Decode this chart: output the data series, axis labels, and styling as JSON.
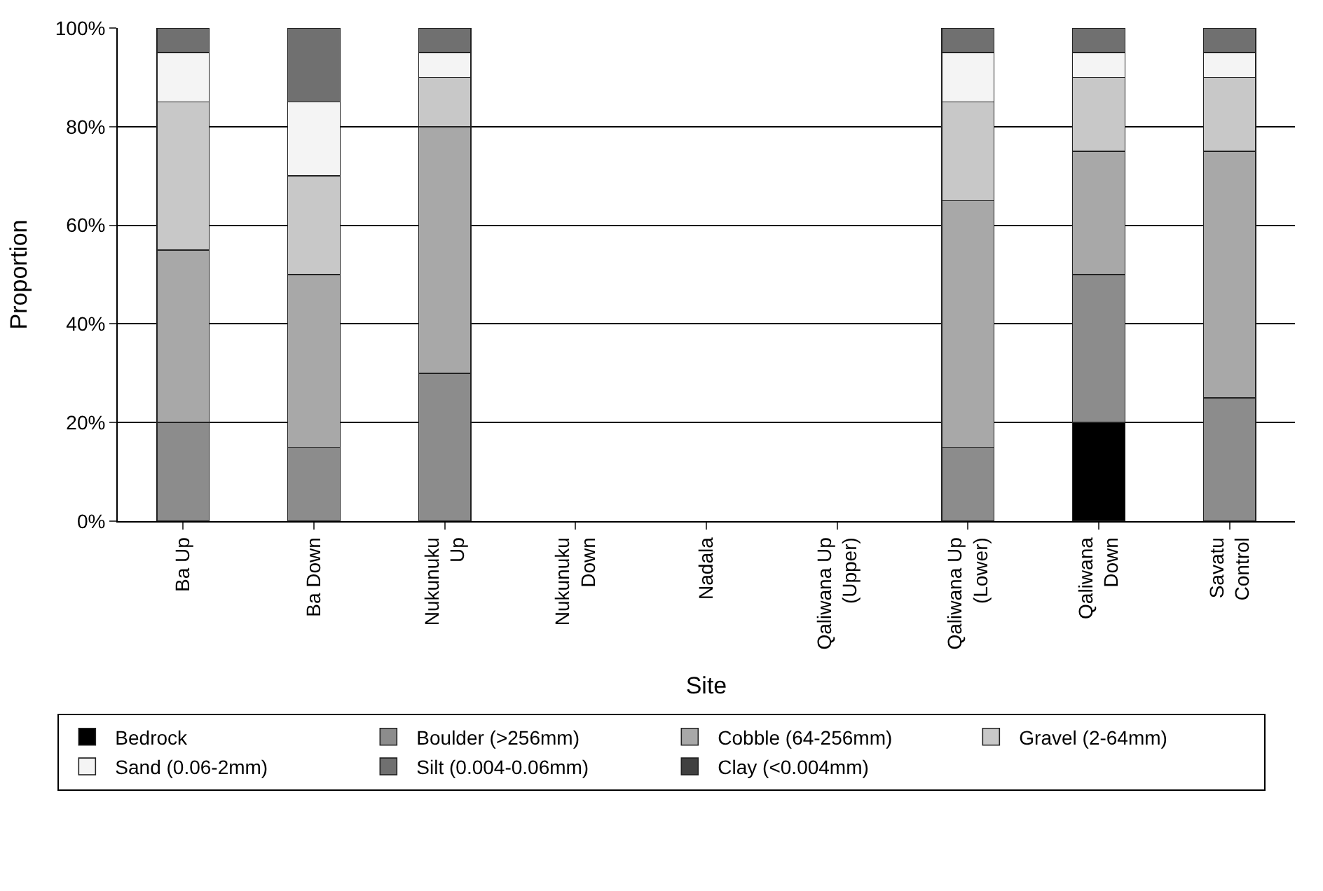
{
  "chart_data": {
    "type": "bar",
    "stacked": true,
    "xlabel": "Site",
    "ylabel": "Proportion",
    "categories": [
      "Ba Up",
      "Ba Down",
      "Nukunuku Up",
      "Nukunuku Down",
      "Nadala",
      "Qaliwana Up (Upper)",
      "Qaliwana Up (Lower)",
      "Qaliwana Down",
      "Savatu Control"
    ],
    "series": [
      {
        "name": "Bedrock",
        "color": "#000000",
        "values": [
          null,
          null,
          null,
          null,
          null,
          null,
          null,
          20,
          null
        ]
      },
      {
        "name": "Boulder (>256mm)",
        "color": "#8c8c8c",
        "values": [
          20,
          15,
          30,
          null,
          null,
          null,
          15,
          30,
          25
        ]
      },
      {
        "name": "Cobble (64-256mm)",
        "color": "#a8a8a8",
        "values": [
          35,
          35,
          50,
          null,
          null,
          null,
          50,
          25,
          50
        ]
      },
      {
        "name": "Gravel (2-64mm)",
        "color": "#c8c8c8",
        "values": [
          30,
          20,
          10,
          null,
          null,
          null,
          20,
          15,
          15
        ]
      },
      {
        "name": "Sand (0.06-2mm)",
        "color": "#f4f4f4",
        "values": [
          10,
          15,
          5,
          null,
          null,
          null,
          10,
          5,
          5
        ]
      },
      {
        "name": "Silt (0.004-0.06mm)",
        "color": "#707070",
        "values": [
          5,
          15,
          5,
          null,
          null,
          null,
          5,
          5,
          5
        ]
      },
      {
        "name": "Clay (<0.004mm)",
        "color": "#404040",
        "values": [
          null,
          null,
          null,
          null,
          null,
          null,
          null,
          null,
          null
        ]
      }
    ],
    "ylim": [
      0,
      100
    ],
    "yticks": [
      {
        "value": 0,
        "label": "0%"
      },
      {
        "value": 20,
        "label": "20%"
      },
      {
        "value": 40,
        "label": "40%"
      },
      {
        "value": 60,
        "label": "60%"
      },
      {
        "value": 80,
        "label": "80%"
      },
      {
        "value": 100,
        "label": "100%"
      }
    ],
    "grid": "y",
    "legend": "bottom"
  }
}
